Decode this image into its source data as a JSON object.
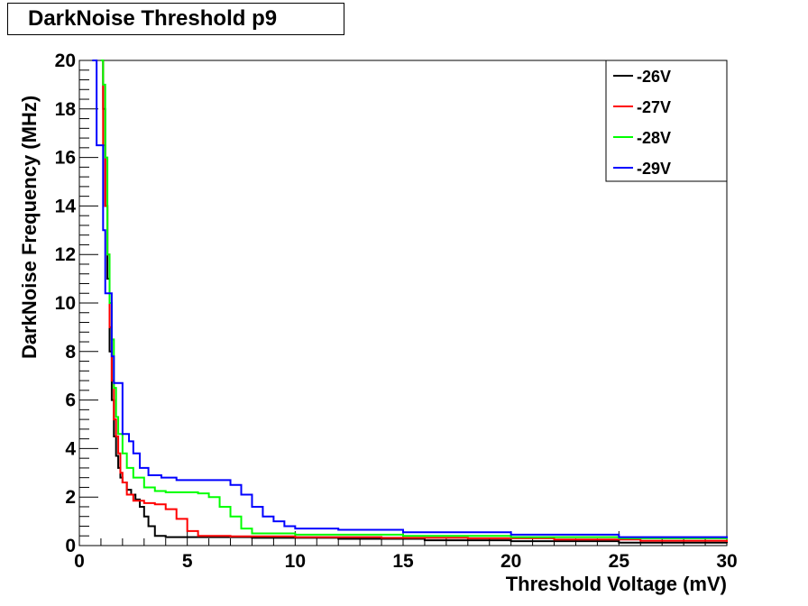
{
  "chart_data": {
    "type": "line",
    "title": "DarkNoise Threshold p9",
    "xlabel": "Threshold Voltage (mV)",
    "ylabel": "DarkNoise Frequency (MHz)",
    "xlim": [
      0,
      30
    ],
    "ylim": [
      0,
      20
    ],
    "x_ticks": [
      0,
      5,
      10,
      15,
      20,
      25,
      30
    ],
    "y_ticks": [
      0,
      2,
      4,
      6,
      8,
      10,
      12,
      14,
      16,
      18,
      20
    ],
    "grid": false,
    "legend_position": "top-right",
    "series": [
      {
        "name": "-26V",
        "color": "#000000",
        "points": [
          [
            1.0,
            20
          ],
          [
            1.1,
            18
          ],
          [
            1.2,
            14
          ],
          [
            1.3,
            11
          ],
          [
            1.4,
            8
          ],
          [
            1.5,
            6
          ],
          [
            1.6,
            4.5
          ],
          [
            1.7,
            3.7
          ],
          [
            1.8,
            3.2
          ],
          [
            1.9,
            2.8
          ],
          [
            2.0,
            2.6
          ],
          [
            2.2,
            2.3
          ],
          [
            2.4,
            2.1
          ],
          [
            2.6,
            1.9
          ],
          [
            2.8,
            1.6
          ],
          [
            3.0,
            1.2
          ],
          [
            3.2,
            0.8
          ],
          [
            3.5,
            0.4
          ],
          [
            4.0,
            0.35
          ],
          [
            8.0,
            0.32
          ],
          [
            12.0,
            0.28
          ],
          [
            16.0,
            0.22
          ],
          [
            20.0,
            0.18
          ],
          [
            25.0,
            0.12
          ],
          [
            30.0,
            0.1
          ]
        ]
      },
      {
        "name": "-27V",
        "color": "#ff0000",
        "points": [
          [
            1.05,
            20
          ],
          [
            1.1,
            16.5
          ],
          [
            1.2,
            14
          ],
          [
            1.3,
            12
          ],
          [
            1.4,
            9
          ],
          [
            1.5,
            6.8
          ],
          [
            1.6,
            5.2
          ],
          [
            1.7,
            4.5
          ],
          [
            1.8,
            3.8
          ],
          [
            1.9,
            3.0
          ],
          [
            2.0,
            2.6
          ],
          [
            2.2,
            2.1
          ],
          [
            2.5,
            1.85
          ],
          [
            3.0,
            1.75
          ],
          [
            3.5,
            1.7
          ],
          [
            4.0,
            1.5
          ],
          [
            4.5,
            1.1
          ],
          [
            5.0,
            0.6
          ],
          [
            5.5,
            0.4
          ],
          [
            7.0,
            0.38
          ],
          [
            10.0,
            0.35
          ],
          [
            14.0,
            0.32
          ],
          [
            18.0,
            0.3
          ],
          [
            22.0,
            0.25
          ],
          [
            26.0,
            0.2
          ],
          [
            30.0,
            0.15
          ]
        ]
      },
      {
        "name": "-28V",
        "color": "#00ff00",
        "points": [
          [
            1.0,
            20
          ],
          [
            1.1,
            19
          ],
          [
            1.2,
            16
          ],
          [
            1.3,
            12
          ],
          [
            1.4,
            10
          ],
          [
            1.5,
            8.5
          ],
          [
            1.6,
            6.5
          ],
          [
            1.7,
            5.3
          ],
          [
            1.8,
            4.6
          ],
          [
            2.0,
            3.8
          ],
          [
            2.2,
            3.2
          ],
          [
            2.5,
            2.8
          ],
          [
            3.0,
            2.4
          ],
          [
            3.5,
            2.25
          ],
          [
            4.0,
            2.2
          ],
          [
            5.0,
            2.2
          ],
          [
            5.5,
            2.15
          ],
          [
            6.0,
            2.0
          ],
          [
            6.5,
            1.6
          ],
          [
            7.0,
            1.2
          ],
          [
            7.5,
            0.7
          ],
          [
            8.0,
            0.5
          ],
          [
            10.0,
            0.45
          ],
          [
            15.0,
            0.4
          ],
          [
            20.0,
            0.35
          ],
          [
            25.0,
            0.3
          ],
          [
            30.0,
            0.25
          ]
        ]
      },
      {
        "name": "-29V",
        "color": "#0000ff",
        "points": [
          [
            0.6,
            20
          ],
          [
            0.8,
            16.5
          ],
          [
            1.0,
            16.5
          ],
          [
            1.1,
            13
          ],
          [
            1.2,
            10.4
          ],
          [
            1.4,
            10.4
          ],
          [
            1.5,
            7.8
          ],
          [
            1.6,
            6.7
          ],
          [
            1.9,
            6.7
          ],
          [
            2.0,
            4.6
          ],
          [
            2.3,
            4.3
          ],
          [
            2.5,
            3.8
          ],
          [
            2.8,
            3.2
          ],
          [
            3.2,
            2.9
          ],
          [
            3.8,
            2.8
          ],
          [
            4.5,
            2.7
          ],
          [
            6.5,
            2.7
          ],
          [
            7.0,
            2.5
          ],
          [
            7.5,
            2.1
          ],
          [
            8.0,
            1.6
          ],
          [
            8.5,
            1.2
          ],
          [
            9.0,
            1.0
          ],
          [
            9.5,
            0.8
          ],
          [
            10.0,
            0.7
          ],
          [
            12.0,
            0.65
          ],
          [
            15.0,
            0.55
          ],
          [
            20.0,
            0.45
          ],
          [
            25.0,
            0.35
          ],
          [
            30.0,
            0.3
          ]
        ]
      }
    ]
  }
}
